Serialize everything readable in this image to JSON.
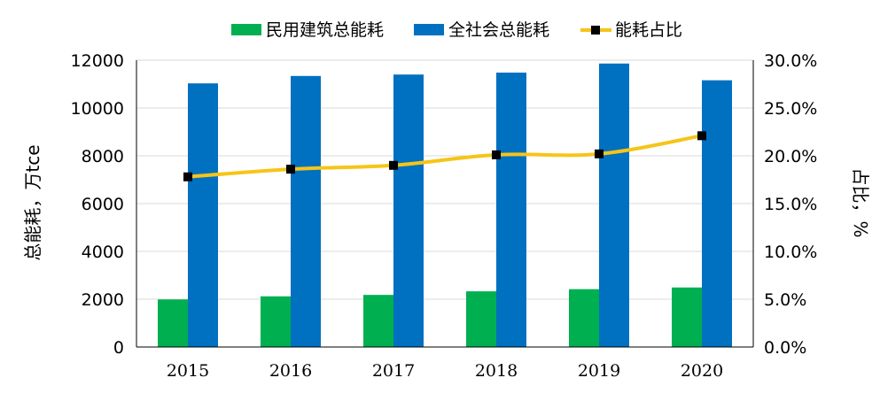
{
  "chart_data": {
    "type": "bar",
    "categories": [
      "2015",
      "2016",
      "2017",
      "2018",
      "2019",
      "2020"
    ],
    "series": [
      {
        "name": "民用建筑总能耗",
        "kind": "bar",
        "axis": "left",
        "color": "#00b050",
        "values": [
          1990,
          2120,
          2180,
          2330,
          2420,
          2490
        ]
      },
      {
        "name": "全社会总能耗",
        "kind": "bar",
        "axis": "left",
        "color": "#0070c0",
        "values": [
          11030,
          11340,
          11400,
          11480,
          11860,
          11160
        ]
      },
      {
        "name": "能耗占比",
        "kind": "line",
        "axis": "right",
        "color": "#f5c518",
        "marker_color": "#000000",
        "values": [
          17.8,
          18.6,
          19.0,
          20.1,
          20.2,
          22.1
        ]
      }
    ],
    "ylabel": "总能耗，万tce",
    "y2label": "占比，%",
    "ylim": [
      0,
      12000
    ],
    "y2lim": [
      0,
      30
    ],
    "yticks": [
      "0",
      "2000",
      "4000",
      "6000",
      "8000",
      "10000",
      "12000"
    ],
    "y2ticks": [
      "0.0%",
      "5.0%",
      "10.0%",
      "15.0%",
      "20.0%",
      "25.0%",
      "30.0%"
    ],
    "grid": true,
    "legend_position": "top"
  }
}
